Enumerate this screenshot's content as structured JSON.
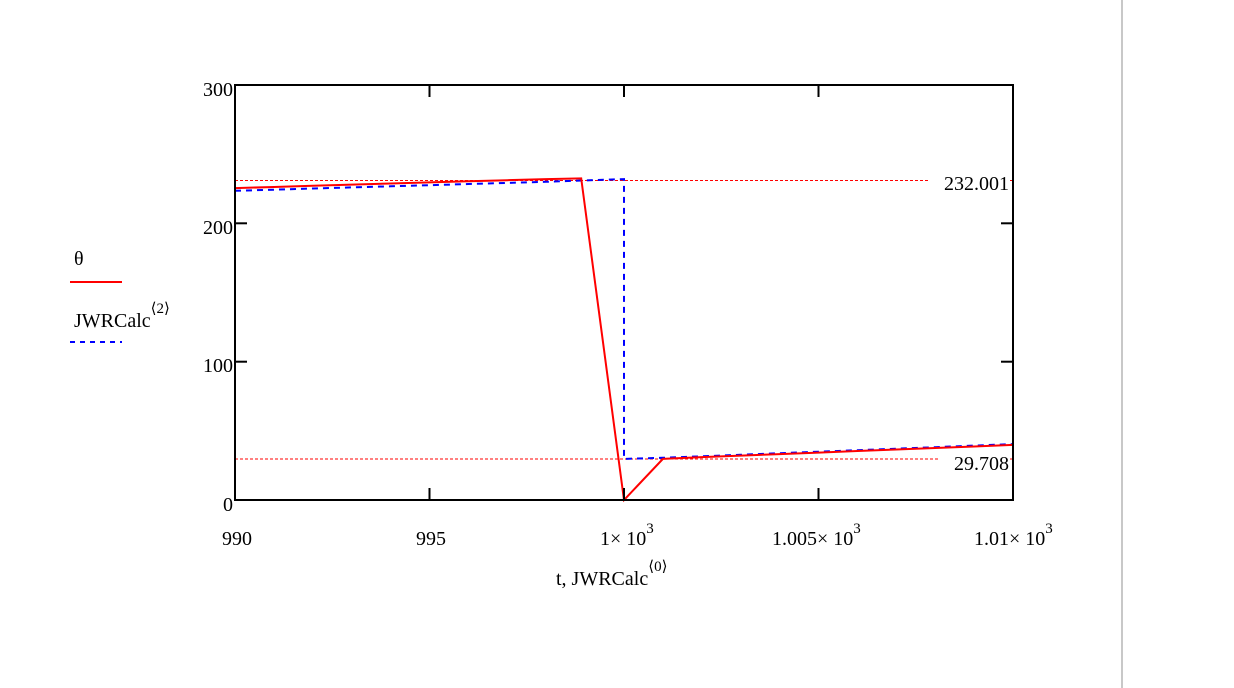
{
  "chart_data": {
    "type": "line",
    "title": "",
    "xlabel": "t, JWRCalc⟨0⟩",
    "ylabel": "",
    "xlim": [
      990,
      1010
    ],
    "ylim": [
      0,
      300
    ],
    "x_ticks": [
      "990",
      "995",
      "1×10^3",
      "1.005×10^3",
      "1.01×10^3"
    ],
    "y_ticks": [
      "0",
      "100",
      "200",
      "300"
    ],
    "grid": false,
    "legend_position": "left",
    "series": [
      {
        "name": "θ",
        "color": "#ff0000",
        "style": "solid",
        "x": [
          990,
          991,
          992,
          993,
          994,
          995,
          996,
          997,
          998,
          998.9,
          1000,
          1001,
          1002,
          1003,
          1004,
          1005,
          1006,
          1007,
          1008,
          1009,
          1010
        ],
        "y": [
          225.5,
          226.3,
          227.1,
          228.0,
          228.8,
          229.6,
          230.4,
          231.2,
          232.0,
          232.5,
          0,
          29.7,
          31.0,
          32.1,
          33.2,
          34.3,
          35.4,
          36.5,
          37.6,
          38.7,
          39.8
        ]
      },
      {
        "name": "JWRCalc⟨2⟩",
        "color": "#0000ff",
        "style": "dashed",
        "x": [
          990,
          991,
          992,
          993,
          994,
          995,
          996,
          997,
          998,
          999,
          1000,
          1000,
          1001,
          1002,
          1003,
          1004,
          1005,
          1006,
          1007,
          1008,
          1009,
          1010
        ],
        "y": [
          223.5,
          224.3,
          225.2,
          226.0,
          226.8,
          227.6,
          228.4,
          229.2,
          230.0,
          231.0,
          232.0,
          29.7,
          30.5,
          31.6,
          32.7,
          33.8,
          34.9,
          36.0,
          37.1,
          38.2,
          39.3,
          40.4
        ]
      }
    ],
    "markers": [
      {
        "label": "232.001",
        "y": 232.001,
        "color": "#ff0000",
        "style": "dotted"
      },
      {
        "label": "29.708",
        "y": 29.708,
        "color": "#ff0000",
        "style": "dotted"
      }
    ]
  },
  "legend": {
    "theta_label": "θ",
    "jwr_label": "JWRCalc",
    "jwr_sup": "⟨2⟩"
  },
  "axis": {
    "x_label_main": "t, JWRCalc",
    "x_label_sup": "⟨0⟩",
    "y_ticks": [
      {
        "label": "300"
      },
      {
        "label": "200"
      },
      {
        "label": "100"
      },
      {
        "label": "0"
      }
    ],
    "x_ticks": [
      {
        "mant": "990",
        "exp": ""
      },
      {
        "mant": "995",
        "exp": ""
      },
      {
        "mant": "1× 10",
        "exp": "3"
      },
      {
        "mant": "1.005× 10",
        "exp": "3"
      },
      {
        "mant": "1.01× 10",
        "exp": "3"
      }
    ]
  },
  "markers": {
    "upper": "232.001",
    "lower": "29.708"
  }
}
